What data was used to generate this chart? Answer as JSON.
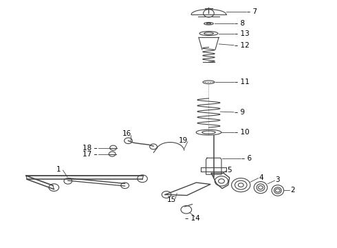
{
  "title": "",
  "background_color": "#ffffff",
  "fig_width": 4.9,
  "fig_height": 3.6,
  "dpi": 100,
  "line_color": "#333333",
  "label_color": "#000000",
  "label_fontsize": 7.5,
  "diagram_color": "#444444"
}
